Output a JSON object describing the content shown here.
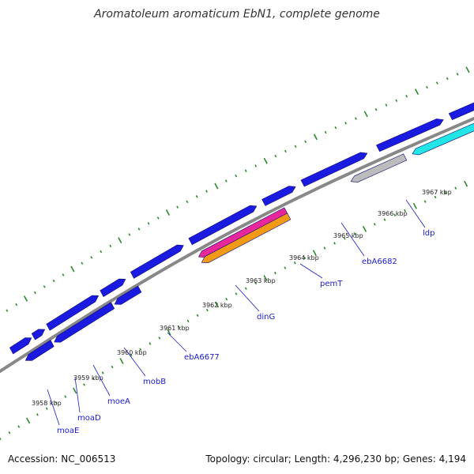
{
  "title": "Aromatoleum aromaticum EbN1, complete genome",
  "accession": "Accession: NC_006513",
  "summary": "Topology: circular; Length: 4,296,230 bp; Genes: 4,194",
  "colors": {
    "backbone": "#888888",
    "gene_default": "#1a1ae0",
    "dots": "#2a8a2a",
    "label": "#1a1acc",
    "magenta": "#e8279a",
    "orange": "#f29a16",
    "gray": "#bcbcbc",
    "cyan": "#22e6e6"
  },
  "tick_labels": [
    "3958 kbp",
    "3959 kbp",
    "3960 kbp",
    "3961 kbp",
    "3962 kbp",
    "3963 kbp",
    "3964 kbp",
    "3965 kbp",
    "3966 kbp",
    "3967 kbp"
  ],
  "gene_labels": [
    "moaE",
    "moaD",
    "moeA",
    "mobB",
    "ebA6677",
    "dinG",
    "pemT",
    "ebA6682",
    "ldp"
  ]
}
